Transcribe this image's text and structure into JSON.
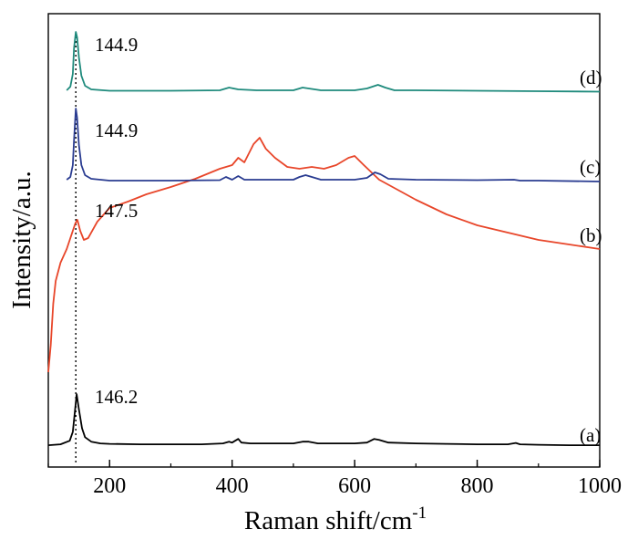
{
  "chart_data": {
    "type": "line",
    "xlabel": "Raman shift/cm",
    "xlabel_sup": "-1",
    "ylabel": "Intensity/a.u.",
    "xlim": [
      100,
      1000
    ],
    "xticks": [
      200,
      400,
      600,
      800,
      1000
    ],
    "y_ticks_labeled": false,
    "grid": false,
    "legend": "none",
    "reference_line": {
      "x": 144.9,
      "style": "dotted"
    },
    "series": [
      {
        "name": "(a)",
        "color": "#000000",
        "peak_label": "146.2",
        "points": [
          [
            100,
            5
          ],
          [
            120,
            6
          ],
          [
            135,
            10
          ],
          [
            140,
            20
          ],
          [
            143,
            40
          ],
          [
            146.2,
            62
          ],
          [
            150,
            45
          ],
          [
            155,
            24
          ],
          [
            160,
            14
          ],
          [
            170,
            9
          ],
          [
            185,
            7
          ],
          [
            200,
            6.5
          ],
          [
            250,
            6
          ],
          [
            300,
            6
          ],
          [
            350,
            6
          ],
          [
            385,
            7
          ],
          [
            395,
            9
          ],
          [
            400,
            8
          ],
          [
            405,
            10
          ],
          [
            410,
            12
          ],
          [
            415,
            8
          ],
          [
            430,
            7
          ],
          [
            470,
            7
          ],
          [
            500,
            7
          ],
          [
            515,
            9
          ],
          [
            525,
            9
          ],
          [
            540,
            7
          ],
          [
            600,
            7
          ],
          [
            620,
            8
          ],
          [
            632,
            12
          ],
          [
            640,
            11
          ],
          [
            655,
            8
          ],
          [
            700,
            7
          ],
          [
            750,
            6.5
          ],
          [
            800,
            6
          ],
          [
            850,
            6
          ],
          [
            863,
            7.5
          ],
          [
            870,
            6
          ],
          [
            900,
            5.5
          ],
          [
            950,
            5
          ],
          [
            1000,
            5
          ]
        ]
      },
      {
        "name": "(b)",
        "color": "#e8462a",
        "peak_label": "147.5",
        "points": [
          [
            100,
            5
          ],
          [
            104,
            35
          ],
          [
            108,
            80
          ],
          [
            112,
            105
          ],
          [
            120,
            125
          ],
          [
            130,
            140
          ],
          [
            140,
            160
          ],
          [
            144,
            168
          ],
          [
            147.5,
            172
          ],
          [
            152,
            160
          ],
          [
            158,
            150
          ],
          [
            165,
            152
          ],
          [
            180,
            170
          ],
          [
            200,
            185
          ],
          [
            230,
            192
          ],
          [
            260,
            200
          ],
          [
            300,
            208
          ],
          [
            340,
            217
          ],
          [
            380,
            228
          ],
          [
            400,
            232
          ],
          [
            410,
            240
          ],
          [
            420,
            235
          ],
          [
            435,
            255
          ],
          [
            445,
            262
          ],
          [
            455,
            250
          ],
          [
            470,
            240
          ],
          [
            490,
            230
          ],
          [
            510,
            228
          ],
          [
            530,
            230
          ],
          [
            550,
            228
          ],
          [
            570,
            232
          ],
          [
            590,
            240
          ],
          [
            600,
            242
          ],
          [
            615,
            232
          ],
          [
            640,
            216
          ],
          [
            670,
            205
          ],
          [
            700,
            194
          ],
          [
            750,
            178
          ],
          [
            800,
            166
          ],
          [
            850,
            158
          ],
          [
            900,
            150
          ],
          [
            950,
            145
          ],
          [
            1000,
            140
          ]
        ]
      },
      {
        "name": "(c)",
        "color": "#2a3c91",
        "peak_label": "144.9",
        "points": [
          [
            130,
            2
          ],
          [
            136,
            5
          ],
          [
            140,
            18
          ],
          [
            142,
            45
          ],
          [
            144.9,
            80
          ],
          [
            147,
            70
          ],
          [
            150,
            40
          ],
          [
            154,
            18
          ],
          [
            160,
            7
          ],
          [
            170,
            3
          ],
          [
            200,
            1
          ],
          [
            300,
            1
          ],
          [
            380,
            1.5
          ],
          [
            390,
            5
          ],
          [
            400,
            2
          ],
          [
            410,
            6
          ],
          [
            420,
            2
          ],
          [
            500,
            2
          ],
          [
            510,
            5
          ],
          [
            520,
            7
          ],
          [
            530,
            5
          ],
          [
            545,
            2
          ],
          [
            600,
            2
          ],
          [
            620,
            4
          ],
          [
            633,
            10
          ],
          [
            642,
            8
          ],
          [
            655,
            3
          ],
          [
            700,
            2
          ],
          [
            800,
            1.5
          ],
          [
            860,
            2
          ],
          [
            870,
            1
          ],
          [
            900,
            1
          ],
          [
            1000,
            0
          ]
        ]
      },
      {
        "name": "(d)",
        "color": "#1e8a7c",
        "peak_label": "144.9",
        "points": [
          [
            130,
            2
          ],
          [
            136,
            6
          ],
          [
            140,
            20
          ],
          [
            142,
            48
          ],
          [
            144.9,
            66
          ],
          [
            147,
            60
          ],
          [
            150,
            38
          ],
          [
            154,
            18
          ],
          [
            160,
            7
          ],
          [
            170,
            3
          ],
          [
            200,
            1.5
          ],
          [
            300,
            1.5
          ],
          [
            380,
            2
          ],
          [
            395,
            5
          ],
          [
            410,
            3
          ],
          [
            440,
            2
          ],
          [
            500,
            2
          ],
          [
            515,
            5
          ],
          [
            525,
            4
          ],
          [
            545,
            2
          ],
          [
            600,
            2
          ],
          [
            620,
            4
          ],
          [
            638,
            8
          ],
          [
            650,
            5
          ],
          [
            665,
            2
          ],
          [
            700,
            2
          ],
          [
            800,
            1.5
          ],
          [
            900,
            1
          ],
          [
            1000,
            0.5
          ]
        ]
      }
    ]
  }
}
